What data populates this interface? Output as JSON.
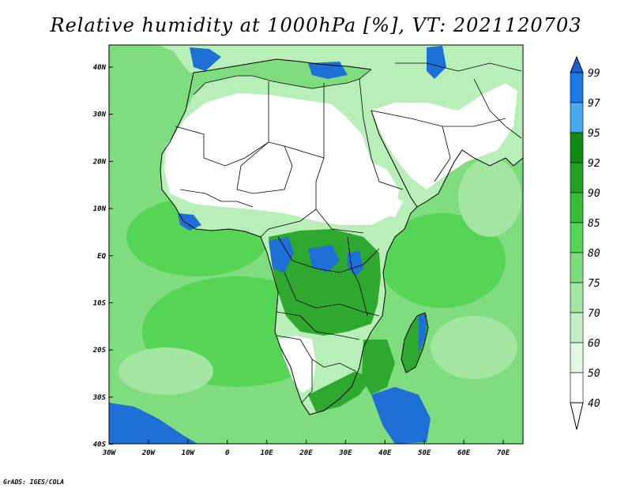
{
  "title": "Relative humidity at 1000hPa [%], VT: 2021120703",
  "credit": "GrADS: IGES/COLA",
  "lat_labels": [
    "40N",
    "30N",
    "20N",
    "10N",
    "EQ",
    "10S",
    "20S",
    "30S",
    "40S"
  ],
  "lon_labels": [
    "30W",
    "20W",
    "10W",
    "0",
    "10E",
    "20E",
    "30E",
    "40E",
    "50E",
    "60E",
    "70E"
  ],
  "colorbar": {
    "levels": [
      "99",
      "97",
      "95",
      "92",
      "90",
      "85",
      "80",
      "75",
      "70",
      "60",
      "50",
      "40"
    ],
    "colors": [
      "#1e5fd6",
      "#1e78e6",
      "#4aa8ee",
      "#0f8a14",
      "#23a023",
      "#36bc36",
      "#55d455",
      "#7ddc7d",
      "#a2e6a2",
      "#c4efc4",
      "#e2f8e2",
      "#ffffff"
    ]
  },
  "map": {
    "extent": {
      "lon_min": -30,
      "lon_max": 75,
      "lat_min": -40,
      "lat_max": 45
    },
    "ocean_color": "#7fdc7f",
    "dry_color": "#ffffff",
    "land_color": "#b8efb8",
    "wet_land_color": "#2ea82e",
    "saturated_color": "#1e6fd6"
  }
}
